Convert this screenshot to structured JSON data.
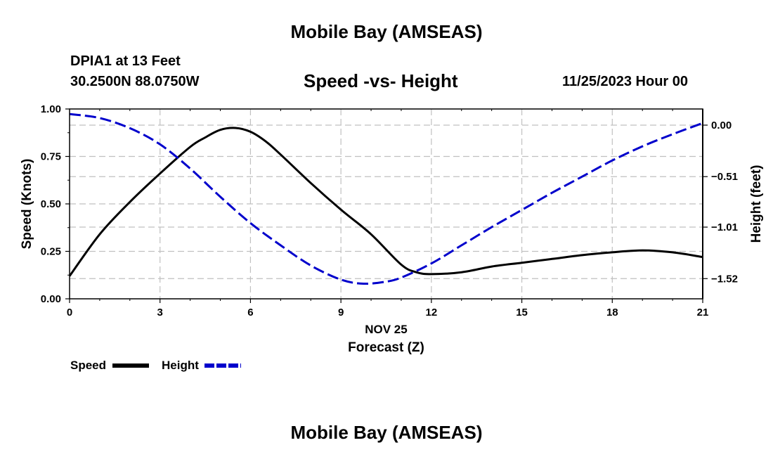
{
  "header": {
    "title": "Mobile Bay (AMSEAS)",
    "station": "DPIA1 at 13 Feet",
    "coords": "30.2500N  88.0750W",
    "chart_title": "Speed -vs- Height",
    "datetime": "11/25/2023 Hour 00"
  },
  "footer": {
    "title": "Mobile Bay (AMSEAS)"
  },
  "colors": {
    "speed": "#000000",
    "height": "#0000cc",
    "grid": "#c0c0c0"
  },
  "chart_data": {
    "type": "line",
    "title": "Speed -vs- Height",
    "xlabel": "Forecast (Z)",
    "date_label": "NOV 25",
    "ylabel_left": "Speed (Knots)",
    "ylabel_right": "Height (feet)",
    "xlim": [
      0,
      21
    ],
    "ylim_left": [
      0,
      1.0
    ],
    "ylim_right": [
      -1.72,
      0.16
    ],
    "x_ticks": [
      0,
      3,
      6,
      9,
      12,
      15,
      18,
      21
    ],
    "x_tick_labels": [
      "0",
      "3",
      "6",
      "9",
      "12",
      "15",
      "18",
      "21"
    ],
    "left_ticks": [
      0,
      0.25,
      0.5,
      0.75,
      1.0
    ],
    "left_tick_labels": [
      "0.00",
      "0.25",
      "0.50",
      "0.75",
      "1.00"
    ],
    "right_ticks": [
      0.0,
      -0.51,
      -1.01,
      -1.52
    ],
    "right_tick_labels": [
      "0.00",
      "−0.51",
      "−1.01",
      "−1.52"
    ],
    "grid": true,
    "legend_position": "bottom-left",
    "series": [
      {
        "name": "Speed",
        "axis": "left",
        "style": "solid",
        "x": [
          0,
          1,
          2,
          3,
          4,
          4.5,
          5,
          5.5,
          6,
          6.5,
          7,
          8,
          9,
          10,
          11,
          11.5,
          12,
          13,
          14,
          15,
          16,
          17,
          18,
          19,
          20,
          21
        ],
        "values": [
          0.12,
          0.34,
          0.51,
          0.66,
          0.8,
          0.85,
          0.89,
          0.9,
          0.88,
          0.83,
          0.76,
          0.61,
          0.47,
          0.34,
          0.18,
          0.14,
          0.13,
          0.14,
          0.17,
          0.19,
          0.21,
          0.23,
          0.245,
          0.255,
          0.245,
          0.22
        ]
      },
      {
        "name": "Height",
        "axis": "right",
        "style": "dashed",
        "x": [
          0,
          1,
          2,
          3,
          4,
          5,
          6,
          7,
          8,
          9,
          9.75,
          10.5,
          11,
          12,
          13,
          14,
          15,
          16,
          17,
          18,
          19,
          20,
          21
        ],
        "values": [
          0.11,
          0.07,
          -0.03,
          -0.19,
          -0.43,
          -0.71,
          -0.97,
          -1.19,
          -1.39,
          -1.53,
          -1.57,
          -1.55,
          -1.51,
          -1.37,
          -1.19,
          -1.01,
          -0.84,
          -0.67,
          -0.51,
          -0.35,
          -0.21,
          -0.09,
          0.02
        ]
      }
    ]
  }
}
